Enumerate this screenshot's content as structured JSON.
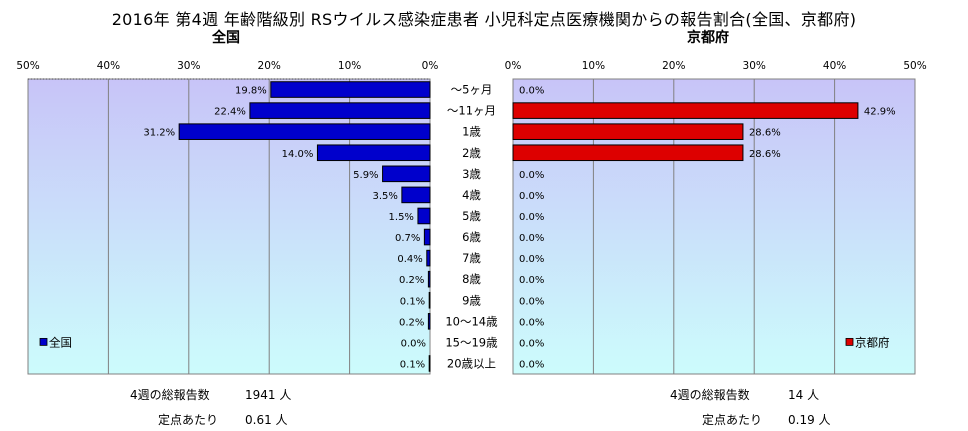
{
  "title": "2016年 第4週 年齢階級別 RSウイルス感染症患者 小児科定点医療機関からの報告割合(全国、京都府)",
  "left_subtitle": "全国",
  "right_subtitle": "京都府",
  "colors": {
    "national": "#0000cc",
    "kyoto": "#dd0000",
    "bg_top": "#c8c4f8",
    "bg_bottom": "#ccfcfc"
  },
  "chart_data": {
    "type": "bar",
    "categories": [
      "～5ヶ月",
      "～11ヶ月",
      "1歳",
      "2歳",
      "3歳",
      "4歳",
      "5歳",
      "6歳",
      "7歳",
      "8歳",
      "9歳",
      "10～14歳",
      "15～19歳",
      "20歳以上"
    ],
    "xlim": [
      0,
      50
    ],
    "ticks": [
      0,
      10,
      20,
      30,
      40,
      50
    ],
    "tick_labels": [
      "0%",
      "10%",
      "20%",
      "30%",
      "40%",
      "50%"
    ],
    "series": [
      {
        "name": "全国",
        "values": [
          19.8,
          22.4,
          31.2,
          14.0,
          5.9,
          3.5,
          1.5,
          0.7,
          0.4,
          0.2,
          0.1,
          0.2,
          0.0,
          0.1
        ],
        "labels": [
          "19.8%",
          "22.4%",
          "31.2%",
          "14.0%",
          "5.9%",
          "3.5%",
          "1.5%",
          "0.7%",
          "0.4%",
          "0.2%",
          "0.1%",
          "0.2%",
          "0.0%",
          "0.1%"
        ]
      },
      {
        "name": "京都府",
        "values": [
          0.0,
          42.9,
          28.6,
          28.6,
          0.0,
          0.0,
          0.0,
          0.0,
          0.0,
          0.0,
          0.0,
          0.0,
          0.0,
          0.0
        ],
        "labels": [
          "0.0%",
          "42.9%",
          "28.6%",
          "28.6%",
          "0.0%",
          "0.0%",
          "0.0%",
          "0.0%",
          "0.0%",
          "0.0%",
          "0.0%",
          "0.0%",
          "0.0%",
          "0.0%"
        ]
      }
    ],
    "grid": true,
    "legend": [
      "bottom-left",
      "bottom-right"
    ]
  },
  "footer": {
    "left": {
      "total_label": "4週の総報告数",
      "total_value": "1941 人",
      "per_label": "定点あたり",
      "per_value": "0.61 人"
    },
    "right": {
      "total_label": "4週の総報告数",
      "total_value": "14 人",
      "per_label": "定点あたり",
      "per_value": "0.19 人"
    }
  }
}
